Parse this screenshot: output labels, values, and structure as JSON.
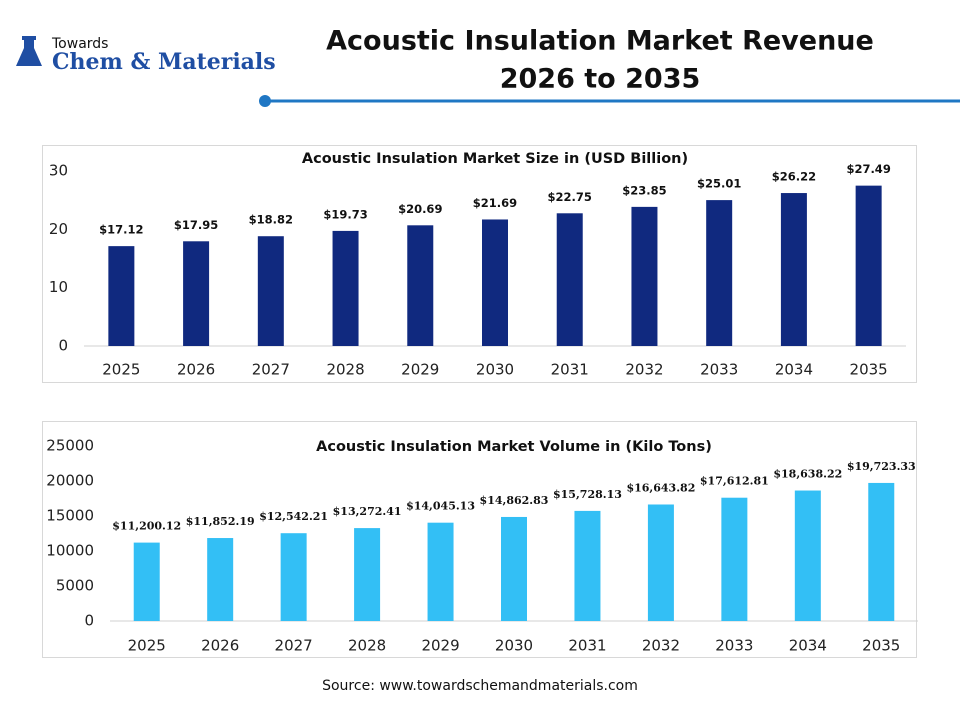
{
  "header": {
    "logo_top": "Towards",
    "logo_main": "Chem & Materials",
    "title_lines": [
      "Acoustic Insulation Market Revenue",
      "2026 to 2035"
    ]
  },
  "chart_data": [
    {
      "type": "bar",
      "title": "Acoustic Insulation Market Size in (USD Billion)",
      "categories": [
        "2025",
        "2026",
        "2027",
        "2028",
        "2029",
        "2030",
        "2031",
        "2032",
        "2033",
        "2034",
        "2035"
      ],
      "values": [
        17.12,
        17.95,
        18.82,
        19.73,
        20.69,
        21.69,
        22.75,
        23.85,
        25.01,
        26.22,
        27.49
      ],
      "value_labels": [
        "$17.12",
        "$17.95",
        "$18.82",
        "$19.73",
        "$20.69",
        "$21.69",
        "$22.75",
        "$23.85",
        "$25.01",
        "$26.22",
        "$27.49"
      ],
      "color": "#10297f",
      "ylim": [
        0,
        30
      ],
      "yticks": [
        0,
        10,
        20,
        30
      ],
      "grid": false
    },
    {
      "type": "bar",
      "title": "Acoustic Insulation Market Volume in (Kilo Tons)",
      "categories": [
        "2025",
        "2026",
        "2027",
        "2028",
        "2029",
        "2030",
        "2031",
        "2032",
        "2033",
        "2034",
        "2035"
      ],
      "values": [
        11200.12,
        11852.19,
        12542.21,
        13272.41,
        14045.13,
        14862.83,
        15728.13,
        16643.82,
        17612.81,
        18638.22,
        19723.33
      ],
      "value_labels": [
        "$11,200.12",
        "$11,852.19",
        "$12,542.21",
        "$13,272.41",
        "$14,045.13",
        "$14,862.83",
        "$15,728.13",
        "$16,643.82",
        "$17,612.81",
        "$18,638.22",
        "$19,723.33"
      ],
      "color": "#33bff5",
      "ylim": [
        0,
        25000
      ],
      "yticks": [
        0,
        5000,
        10000,
        15000,
        20000,
        25000
      ],
      "grid": false
    }
  ],
  "source": "Source: www.towardschemandmaterials.com"
}
